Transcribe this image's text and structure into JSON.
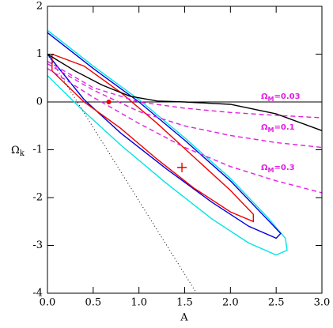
{
  "chart_data": {
    "type": "line",
    "xlabel": "A",
    "ylabel": {
      "symbol": "Ω",
      "subscript": "k"
    },
    "xlim": [
      0,
      3
    ],
    "ylim": [
      -4,
      2
    ],
    "xticks": [
      {
        "value": 0,
        "label": "0.0"
      },
      {
        "value": 0.5,
        "label": "0.5"
      },
      {
        "value": 1,
        "label": "1.0"
      },
      {
        "value": 1.5,
        "label": "1.5"
      },
      {
        "value": 2,
        "label": "2.0"
      },
      {
        "value": 2.5,
        "label": "2.5"
      },
      {
        "value": 3,
        "label": "3.0"
      }
    ],
    "yticks": [
      -4,
      -3,
      -2,
      -1,
      0,
      1,
      2
    ],
    "hline": 0,
    "series": [
      {
        "color": "#00e5e5",
        "style": "solid",
        "x": [
          0,
          0.5,
          1.0,
          1.5,
          2.0,
          2.4,
          2.6,
          2.62,
          2.5,
          2.2,
          1.8,
          1.3,
          0.8,
          0.4,
          0
        ],
        "values": [
          1.5,
          0.75,
          0.05,
          -0.75,
          -1.6,
          -2.4,
          -2.85,
          -3.1,
          -3.2,
          -2.95,
          -2.45,
          -1.7,
          -0.9,
          -0.2,
          0.55
        ]
      },
      {
        "color": "#0000e0",
        "style": "solid",
        "x": [
          0,
          0.5,
          1.0,
          1.5,
          2.0,
          2.4,
          2.55,
          2.5,
          2.2,
          1.8,
          1.3,
          0.8,
          0.4,
          0
        ],
        "values": [
          1.45,
          0.7,
          0.0,
          -0.8,
          -1.65,
          -2.45,
          -2.75,
          -2.85,
          -2.6,
          -2.1,
          -1.4,
          -0.65,
          0.05,
          1.0
        ]
      },
      {
        "color": "#ee0000",
        "style": "solid",
        "x": [
          0.05,
          0.4,
          0.8,
          1.2,
          1.6,
          2.0,
          2.25,
          2.25,
          2.0,
          1.6,
          1.2,
          0.8,
          0.4,
          0.05,
          0.05
        ],
        "values": [
          1.0,
          0.75,
          0.2,
          -0.45,
          -1.15,
          -1.85,
          -2.35,
          -2.5,
          -2.3,
          -1.8,
          -1.2,
          -0.55,
          0.0,
          0.65,
          1.0
        ]
      },
      {
        "color": "#000000",
        "style": "solid",
        "x": [
          0,
          0.3,
          0.6,
          0.9,
          1.2,
          1.5,
          2.0,
          2.5,
          3.0
        ],
        "values": [
          1.0,
          0.65,
          0.35,
          0.12,
          0.02,
          0.0,
          -0.05,
          -0.25,
          -0.6
        ]
      },
      {
        "color": "#000000",
        "style": "dotted",
        "x": [
          0,
          1.63
        ],
        "values": [
          1,
          -4
        ]
      },
      {
        "color": "#e020e0",
        "style": "dashed",
        "x": [
          0,
          0.5,
          1.0,
          1.5,
          2.0,
          2.5,
          3.0
        ],
        "values": [
          0.85,
          0.3,
          0.0,
          -0.13,
          -0.22,
          -0.28,
          -0.33
        ]
      },
      {
        "color": "#e020e0",
        "style": "dashed",
        "x": [
          0,
          0.5,
          1.0,
          1.5,
          2.0,
          2.5,
          3.0
        ],
        "values": [
          0.8,
          0.25,
          -0.2,
          -0.5,
          -0.7,
          -0.85,
          -0.95
        ]
      },
      {
        "color": "#e020e0",
        "style": "dashed",
        "x": [
          0,
          0.5,
          1.0,
          1.5,
          2.0,
          2.5,
          3.0
        ],
        "values": [
          0.7,
          0.1,
          -0.45,
          -0.95,
          -1.35,
          -1.65,
          -1.9
        ]
      }
    ],
    "points": [
      {
        "marker": "dot",
        "color": "#ee0000",
        "x": 0.67,
        "y": 0.0
      },
      {
        "marker": "cross",
        "color": "#ee0000",
        "x": 1.47,
        "y": -1.37
      }
    ],
    "annotations": [
      {
        "symbol": "Ω",
        "subscript": "M",
        "text": "=0.03"
      },
      {
        "symbol": "Ω",
        "subscript": "M",
        "text": "=0.1"
      },
      {
        "symbol": "Ω",
        "subscript": "M",
        "text": "=0.3"
      }
    ]
  }
}
